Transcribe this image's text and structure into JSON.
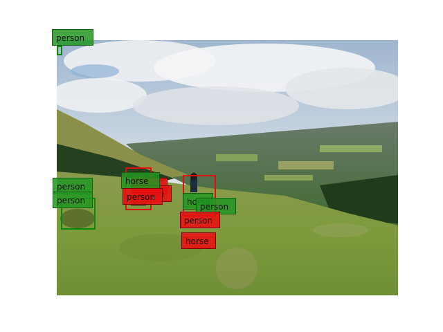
{
  "image": {
    "description_icon": "photo-hillside-landscape"
  },
  "colors": {
    "ground_truth": "#0a8a0a",
    "prediction": "#e01010"
  },
  "labels": {
    "person": "person",
    "horse": "horse"
  }
}
